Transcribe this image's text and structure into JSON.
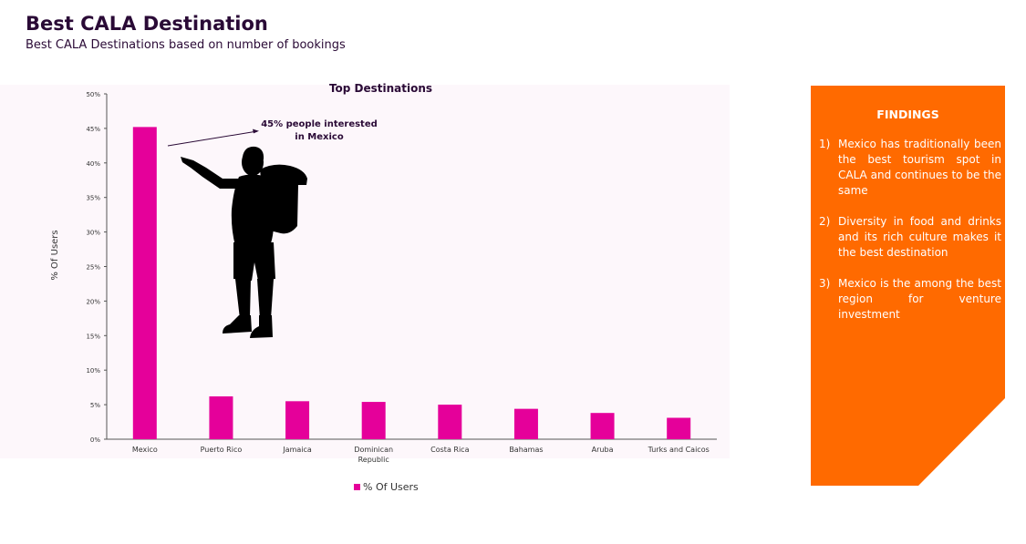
{
  "header": {
    "title": "Best CALA Destination",
    "subtitle": "Best CALA Destinations based on number of bookings"
  },
  "chart_data": {
    "type": "bar",
    "title": "Top Destinations",
    "xlabel": "",
    "ylabel": "% Of Users",
    "categories": [
      "Mexico",
      "Puerto Rico",
      "Jamaica",
      "Dominican Republic",
      "Costa Rica",
      "Bahamas",
      "Aruba",
      "Turks and Caicos"
    ],
    "series": [
      {
        "name": "% Of Users",
        "values": [
          45.2,
          6.2,
          5.5,
          5.4,
          5.0,
          4.4,
          3.8,
          3.1
        ]
      }
    ],
    "ylim": [
      0,
      50
    ],
    "yticks": [
      "0%",
      "5%",
      "10%",
      "15%",
      "20%",
      "25%",
      "30%",
      "35%",
      "40%",
      "45%",
      "50%"
    ],
    "grid": false,
    "legend_position": "bottom",
    "bar_color": "#e5009a",
    "annotation": "45% people interested in Mexico"
  },
  "illustration": {
    "icon": "traveler-with-backpack-pointing-icon"
  },
  "findings": {
    "heading": "FINDINGS",
    "items": [
      {
        "num": "1)",
        "text": "Mexico has traditionally been the best tourism spot in CALA and continues to be the same"
      },
      {
        "num": "2)",
        "text": "Diversity in food and drinks and its rich culture makes it the best destination"
      },
      {
        "num": "3)",
        "text": "Mexico is the among the best region for venture investment"
      }
    ],
    "panel_color": "#ff6a00"
  }
}
